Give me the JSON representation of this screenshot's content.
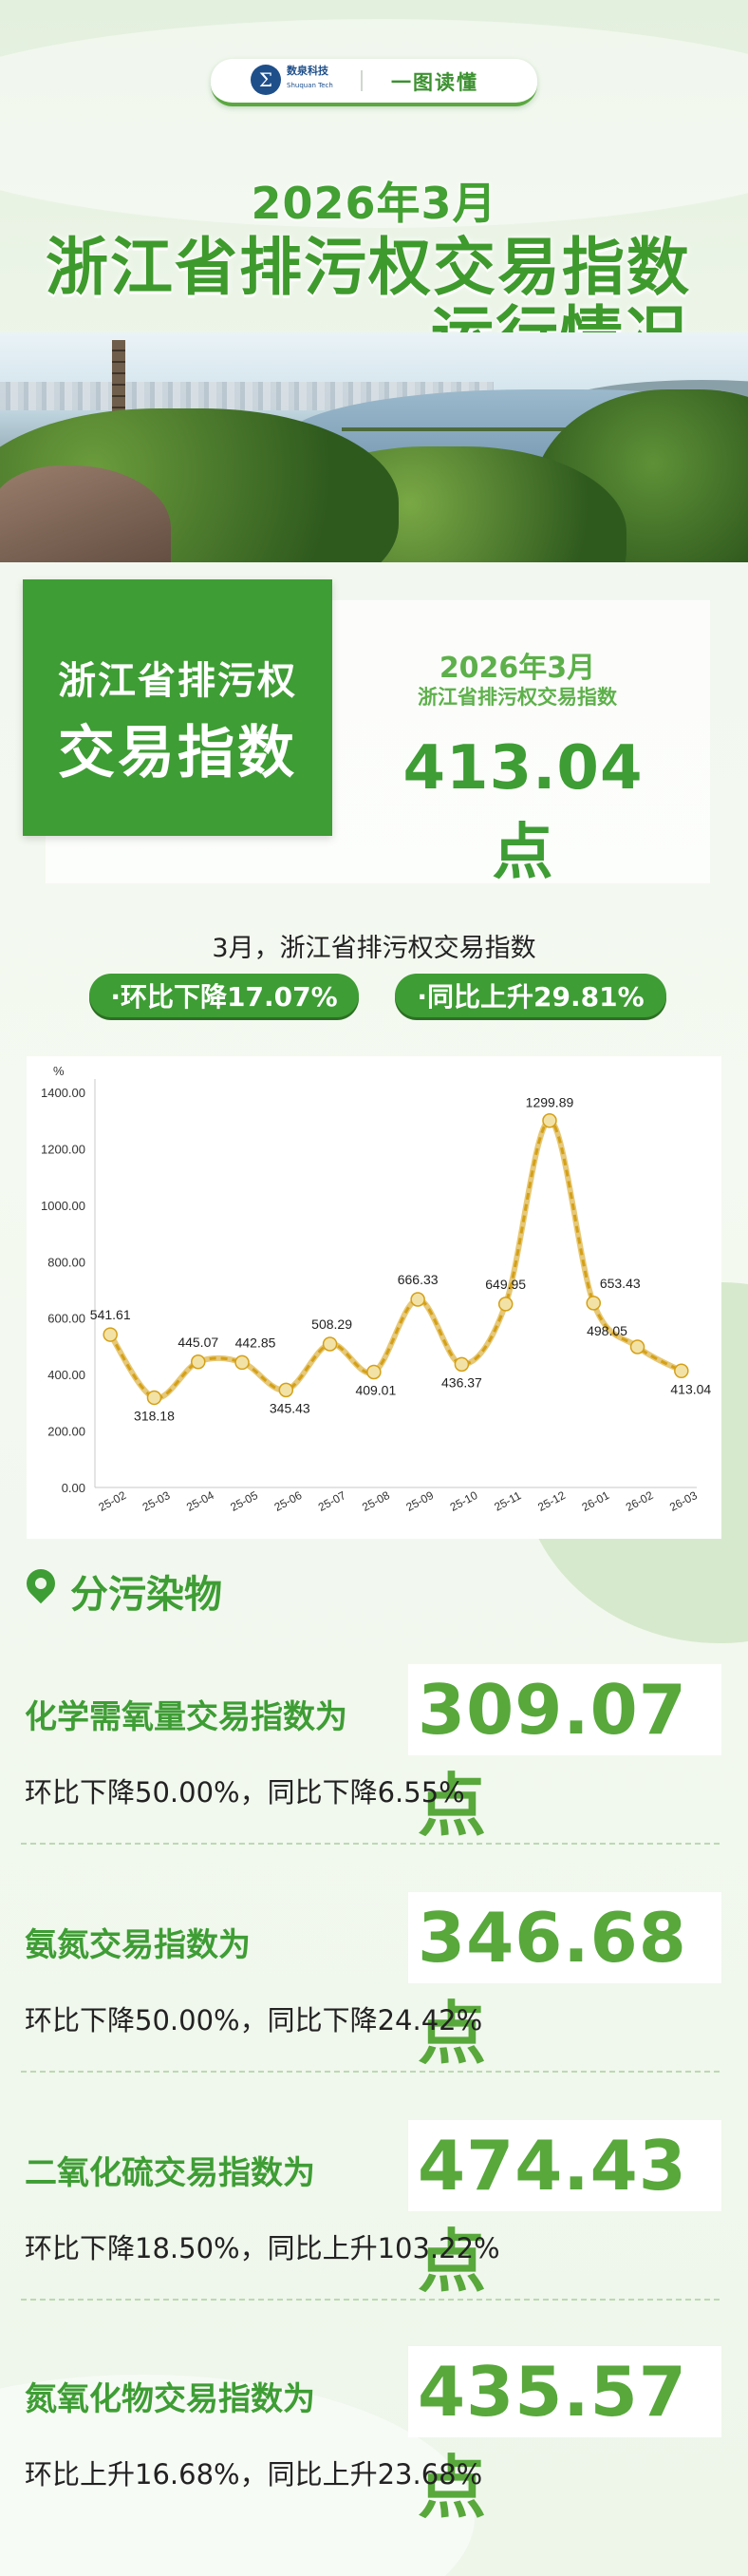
{
  "header": {
    "logo_text": "数泉科技",
    "logo_sub": "Shuquan Tech",
    "tag": "一图读懂"
  },
  "title": {
    "line1": "2026年3月",
    "line2": "浙江省排污权交易指数",
    "line3": "运行情况"
  },
  "index_card": {
    "left_line1": "浙江省排污权",
    "left_line2": "交易指数",
    "right_date": "2026年3月",
    "right_label": "浙江省排污权交易指数",
    "right_value": "413.04点"
  },
  "summary": {
    "text": "3月，浙江省排污权交易指数",
    "badge_mom": "·环比下降17.07%",
    "badge_yoy": "·同比上升29.81%"
  },
  "chart_data": {
    "type": "line",
    "ylabel": "%",
    "ylim": [
      0,
      1400
    ],
    "yticks": [
      "0.00",
      "200.00",
      "400.00",
      "600.00",
      "800.00",
      "1000.00",
      "1200.00",
      "1400.00"
    ],
    "categories": [
      "25-02",
      "25-03",
      "25-04",
      "25-05",
      "25-06",
      "25-07",
      "25-08",
      "25-09",
      "25-10",
      "25-11",
      "25-12",
      "26-01",
      "26-02",
      "26-03"
    ],
    "values": [
      541.61,
      318.18,
      445.07,
      442.85,
      345.43,
      508.29,
      409.01,
      666.33,
      436.37,
      649.95,
      1299.89,
      653.43,
      498.05,
      413.04
    ],
    "labels": [
      "541.61",
      "318.18",
      "445.07",
      "442.85",
      "345.43",
      "508.29",
      "409.01",
      "666.33",
      "436.37",
      "649.95",
      "1299.89",
      "653.43",
      "498.05",
      "413.04"
    ],
    "line_color": "#d4a017",
    "marker_color": "#f3e2a6",
    "grid": false
  },
  "pollutants": {
    "section_title": "分污染物",
    "items": [
      {
        "name": "化学需氧量交易指数为",
        "value": "309.07点",
        "change": "环比下降50.00%，同比下降6.55%"
      },
      {
        "name": "氨氮交易指数为",
        "value": "346.68点",
        "change": "环比下降50.00%，同比下降24.42%"
      },
      {
        "name": "二氧化硫交易指数为",
        "value": "474.43点",
        "change": "环比下降18.50%，同比上升103.22%"
      },
      {
        "name": "氮氧化物交易指数为",
        "value": "435.57点",
        "change": "环比上升16.68%，同比上升23.68%"
      }
    ]
  },
  "colors": {
    "brand_green": "#3e9d34",
    "light_green": "#5db04a"
  }
}
